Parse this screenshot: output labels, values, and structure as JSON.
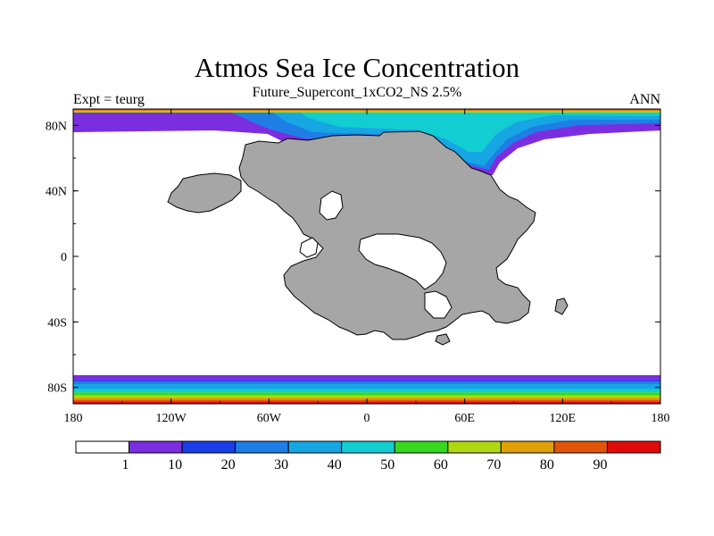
{
  "title": "Atmos Sea Ice Concentration",
  "subtitle": "Future_Supercont_1xCO2_NS 2.5%",
  "left_string": "Expt = teurg",
  "right_string": "ANN",
  "colors": {
    "land": "#a6a6a6",
    "coast": "#000000",
    "levels": [
      "#ffffff",
      "#7b2ee0",
      "#1a3ee8",
      "#1f7ee6",
      "#16a6e3",
      "#12cdd1",
      "#38d820",
      "#b0d810",
      "#e0a008",
      "#e05508",
      "#e00a0a"
    ]
  },
  "chart_data": {
    "type": "heatmap",
    "projection": "cylindrical-equidistant",
    "lon_range": [
      -180,
      180
    ],
    "lat_range": [
      -90,
      90
    ],
    "x_ticks": [
      {
        "value": -180,
        "label": "180"
      },
      {
        "value": -120,
        "label": "120W"
      },
      {
        "value": -60,
        "label": "60W"
      },
      {
        "value": 0,
        "label": "0"
      },
      {
        "value": 60,
        "label": "60E"
      },
      {
        "value": 120,
        "label": "120E"
      },
      {
        "value": 180,
        "label": "180"
      }
    ],
    "y_ticks": [
      {
        "value": 80,
        "label": "80N"
      },
      {
        "value": 40,
        "label": "40N"
      },
      {
        "value": 0,
        "label": "0"
      },
      {
        "value": -40,
        "label": "40S"
      },
      {
        "value": -80,
        "label": "80S"
      }
    ],
    "colorbar": {
      "levels": [
        1,
        10,
        20,
        30,
        40,
        50,
        60,
        70,
        80,
        90
      ],
      "labels": [
        "1",
        "10",
        "20",
        "30",
        "40",
        "50",
        "60",
        "70",
        "80",
        "90"
      ]
    },
    "south_ice_bands": [
      {
        "level_index": 10,
        "lat": [
          -90,
          -88.5
        ]
      },
      {
        "level_index": 9,
        "lat": [
          -88.5,
          -87.5
        ]
      },
      {
        "level_index": 8,
        "lat": [
          -87.5,
          -86.2
        ]
      },
      {
        "level_index": 7,
        "lat": [
          -86.2,
          -84.8
        ]
      },
      {
        "level_index": 6,
        "lat": [
          -84.8,
          -83.0
        ]
      },
      {
        "level_index": 5,
        "lat": [
          -83.0,
          -81.0
        ]
      },
      {
        "level_index": 4,
        "lat": [
          -81.0,
          -78.0
        ]
      },
      {
        "level_index": 3,
        "lat": [
          -78.0,
          -76.5
        ]
      },
      {
        "level_index": 2,
        "lat": [
          -76.5,
          -75.5
        ]
      },
      {
        "level_index": 1,
        "lat": [
          -75.5,
          -72.5
        ]
      }
    ]
  }
}
